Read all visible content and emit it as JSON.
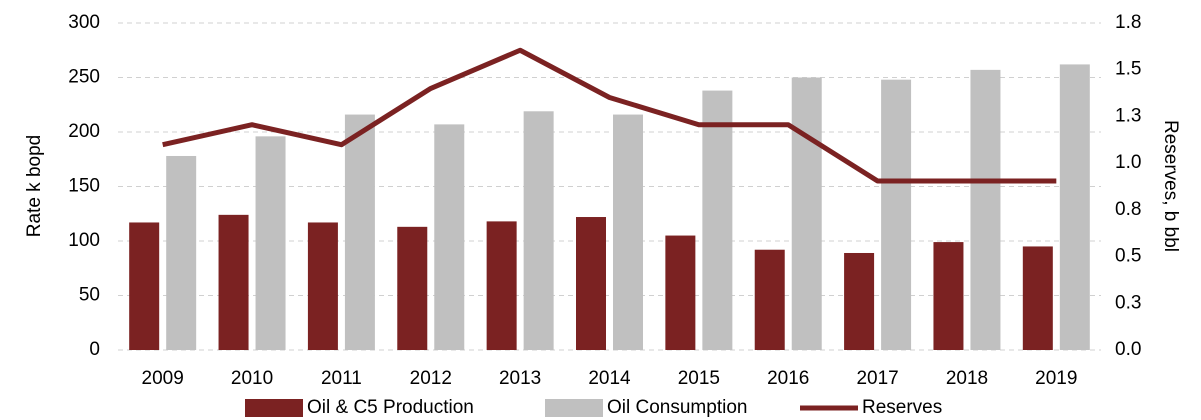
{
  "chart_data": {
    "type": "bar_line",
    "y_label": "Rate k bopd",
    "y2_label": "Reserves, b bbl",
    "categories": [
      "2009",
      "2010",
      "2011",
      "2012",
      "2013",
      "2014",
      "2015",
      "2016",
      "2017",
      "2018",
      "2019"
    ],
    "series": [
      {
        "name": "Oil & C5 Production",
        "type": "bar",
        "color": "#7b2222",
        "values": [
          117,
          124,
          117,
          113,
          118,
          122,
          105,
          92,
          89,
          99,
          95
        ]
      },
      {
        "name": "Oil Consumption",
        "type": "bar",
        "color": "#c0c0c0",
        "values": [
          178,
          196,
          216,
          207,
          219,
          216,
          238,
          250,
          248,
          257,
          262
        ]
      },
      {
        "name": "Reserves",
        "type": "line",
        "axis": "y2",
        "color": "#7b2222",
        "values": [
          1.13,
          1.24,
          1.13,
          1.44,
          1.65,
          1.39,
          1.24,
          1.24,
          0.93,
          0.93,
          0.93
        ]
      }
    ],
    "ylim": [
      0,
      300
    ],
    "yticks": [
      0,
      50,
      100,
      150,
      200,
      250,
      300
    ],
    "y2lim": [
      0,
      1.8
    ],
    "y2ticks": [
      {
        "value": 0,
        "label": "0.0"
      },
      {
        "value": 0.257,
        "label": "0.3"
      },
      {
        "value": 0.514,
        "label": "0.5"
      },
      {
        "value": 0.771,
        "label": "0.8"
      },
      {
        "value": 1.029,
        "label": "1.0"
      },
      {
        "value": 1.286,
        "label": "1.3"
      },
      {
        "value": 1.543,
        "label": "1.5"
      },
      {
        "value": 1.8,
        "label": "1.8"
      }
    ],
    "grid": true,
    "legend": "bottom"
  }
}
